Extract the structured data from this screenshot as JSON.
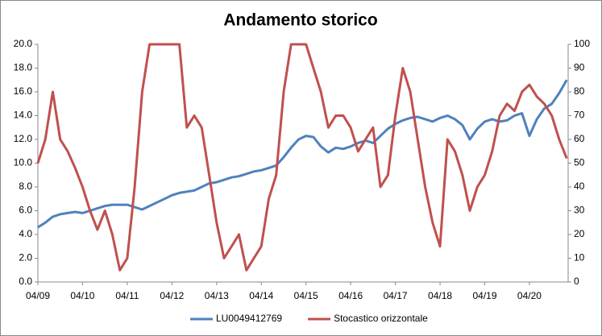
{
  "chart_data": {
    "type": "line",
    "title": "Andamento storico",
    "categories": [
      "04/09",
      null,
      null,
      null,
      null,
      null,
      "04/10",
      null,
      null,
      null,
      null,
      null,
      "04/11",
      null,
      null,
      null,
      null,
      null,
      "04/12",
      null,
      null,
      null,
      null,
      null,
      "04/13",
      null,
      null,
      null,
      null,
      null,
      "04/14",
      null,
      null,
      null,
      null,
      null,
      "04/15",
      null,
      null,
      null,
      null,
      null,
      "04/16",
      null,
      null,
      null,
      null,
      null,
      "04/17",
      null,
      null,
      null,
      null,
      null,
      "04/18",
      null,
      null,
      null,
      null,
      null,
      "04/19",
      null,
      null,
      null,
      null,
      null,
      "04/20",
      null,
      null,
      null,
      null,
      null
    ],
    "series": [
      {
        "name": "LU0049412769",
        "color": "#4f81bd",
        "values": [
          4.6,
          5.0,
          5.5,
          5.7,
          5.8,
          5.9,
          5.8,
          6.0,
          6.2,
          6.4,
          6.5,
          6.5,
          6.5,
          6.3,
          6.1,
          6.4,
          6.7,
          7.0,
          7.3,
          7.5,
          7.6,
          7.7,
          8.0,
          8.3,
          8.4,
          8.6,
          8.8,
          8.9,
          9.1,
          9.3,
          9.4,
          9.6,
          9.8,
          10.5,
          11.3,
          12.0,
          12.3,
          12.2,
          11.4,
          10.9,
          11.3,
          11.2,
          11.4,
          11.7,
          11.9,
          11.7,
          12.3,
          12.9,
          13.3,
          13.6,
          13.8,
          13.9,
          13.7,
          13.5,
          13.8,
          14.0,
          13.7,
          13.2,
          12.0,
          12.9,
          13.5,
          13.7,
          13.5,
          13.6,
          14.0,
          14.2,
          12.3,
          13.7,
          14.6,
          15.0,
          15.9,
          17.0
        ]
      },
      {
        "name": "Stocastico orizzontale",
        "color": "#c0504d",
        "axis": "y2",
        "values": [
          50,
          60,
          80,
          60,
          55,
          48,
          40,
          30,
          22,
          30,
          20,
          5,
          10,
          40,
          80,
          100,
          100,
          100,
          100,
          100,
          65,
          70,
          65,
          45,
          25,
          10,
          15,
          20,
          5,
          10,
          15,
          35,
          45,
          80,
          100,
          100,
          100,
          90,
          80,
          65,
          70,
          70,
          65,
          55,
          60,
          65,
          40,
          45,
          70,
          90,
          80,
          60,
          40,
          25,
          15,
          60,
          55,
          45,
          30,
          40,
          45,
          55,
          70,
          75,
          72,
          80,
          83,
          78,
          75,
          70,
          60,
          52
        ]
      }
    ],
    "ylim": [
      0,
      20
    ],
    "yticks": [
      {
        "value": 0,
        "label": "0.0"
      },
      {
        "value": 2,
        "label": "2.0"
      },
      {
        "value": 4,
        "label": "4.0"
      },
      {
        "value": 6,
        "label": "6.0"
      },
      {
        "value": 8,
        "label": "8.0"
      },
      {
        "value": 10,
        "label": "10.0"
      },
      {
        "value": 12,
        "label": "12.0"
      },
      {
        "value": 14,
        "label": "14.0"
      },
      {
        "value": 16,
        "label": "16.0"
      },
      {
        "value": 18,
        "label": "18.0"
      },
      {
        "value": 20,
        "label": "20.0"
      }
    ],
    "y2lim": [
      0,
      100
    ],
    "y2ticks": [
      0,
      10,
      20,
      30,
      40,
      50,
      60,
      70,
      80,
      90,
      100
    ],
    "legend": "bottom"
  }
}
